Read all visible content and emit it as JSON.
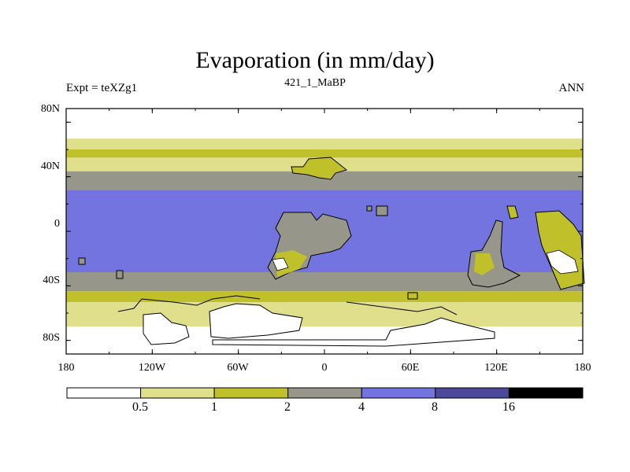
{
  "chart_data": {
    "type": "heatmap",
    "title": "Evaporation (in mm/day)",
    "subtitle_left": "Expt = teXZg1",
    "subtitle_center": "421_1_MaBP",
    "subtitle_right": "ANN",
    "x_ticks": [
      "180",
      "120W",
      "60W",
      "0",
      "60E",
      "120E",
      "180"
    ],
    "y_ticks": [
      "80N",
      "40N",
      "0",
      "40S",
      "80S"
    ],
    "xlim": [
      -180,
      180
    ],
    "ylim": [
      -90,
      90
    ],
    "levels": [
      "0.5",
      "1",
      "2",
      "4",
      "8",
      "16"
    ],
    "colors": [
      "#ffffff",
      "#e0e08c",
      "#c0c02a",
      "#96968a",
      "#7474e0",
      "#4a4a98",
      "#000000"
    ],
    "bands_by_latitude": [
      {
        "lat_from": 90,
        "lat_to": 68,
        "class": "<0.5"
      },
      {
        "lat_from": 68,
        "lat_to": 60,
        "class": "0.5-1"
      },
      {
        "lat_from": 60,
        "lat_to": 54,
        "class": "1-2"
      },
      {
        "lat_from": 54,
        "lat_to": 44,
        "class": "0.5-1"
      },
      {
        "lat_from": 44,
        "lat_to": 30,
        "class": "2-4"
      },
      {
        "lat_from": 30,
        "lat_to": -30,
        "class": "4-8"
      },
      {
        "lat_from": -30,
        "lat_to": -44,
        "class": "2-4"
      },
      {
        "lat_from": -44,
        "lat_to": -52,
        "class": "1-2"
      },
      {
        "lat_from": -52,
        "lat_to": -70,
        "class": "0.5-1"
      },
      {
        "lat_from": -70,
        "lat_to": -90,
        "class": "<0.5"
      }
    ]
  }
}
